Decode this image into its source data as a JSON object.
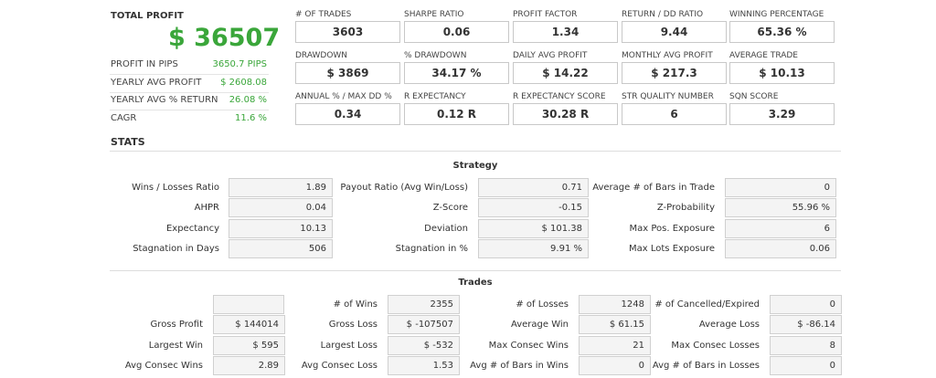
{
  "summary": {
    "title": "TOTAL PROFIT",
    "total": "$ 36507",
    "rows": [
      {
        "label": "PROFIT IN PIPS",
        "value": "3650.7 PIPS"
      },
      {
        "label": "YEARLY AVG PROFIT",
        "value": "$ 2608.08"
      },
      {
        "label": "YEARLY AVG % RETURN",
        "value": "26.08 %"
      },
      {
        "label": "CAGR",
        "value": "11.6 %"
      }
    ]
  },
  "metrics": {
    "rows": [
      [
        {
          "label": "# OF TRADES",
          "value": "3603"
        },
        {
          "label": "SHARPE RATIO",
          "value": "0.06"
        },
        {
          "label": "PROFIT FACTOR",
          "value": "1.34"
        },
        {
          "label": "RETURN / DD RATIO",
          "value": "9.44"
        },
        {
          "label": "WINNING PERCENTAGE",
          "value": "65.36 %"
        }
      ],
      [
        {
          "label": "DRAWDOWN",
          "value": "$ 3869"
        },
        {
          "label": "% DRAWDOWN",
          "value": "34.17 %"
        },
        {
          "label": "DAILY AVG PROFIT",
          "value": "$ 14.22"
        },
        {
          "label": "MONTHLY AVG PROFIT",
          "value": "$ 217.3"
        },
        {
          "label": "AVERAGE TRADE",
          "value": "$ 10.13"
        }
      ],
      [
        {
          "label": "ANNUAL % / MAX DD %",
          "value": "0.34"
        },
        {
          "label": "R EXPECTANCY",
          "value": "0.12 R"
        },
        {
          "label": "R EXPECTANCY SCORE",
          "value": "30.28 R"
        },
        {
          "label": "STR QUALITY NUMBER",
          "value": "6"
        },
        {
          "label": "SQN SCORE",
          "value": "3.29"
        }
      ]
    ]
  },
  "stats": {
    "title": "STATS",
    "strategy": {
      "title": "Strategy",
      "rows": [
        [
          {
            "label": "Wins / Losses Ratio",
            "value": "1.89"
          },
          {
            "label": "Payout Ratio (Avg Win/Loss)",
            "value": "0.71"
          },
          {
            "label": "Average # of Bars in Trade",
            "value": "0"
          }
        ],
        [
          {
            "label": "AHPR",
            "value": "0.04"
          },
          {
            "label": "Z-Score",
            "value": "-0.15"
          },
          {
            "label": "Z-Probability",
            "value": "55.96 %"
          }
        ],
        [
          {
            "label": "Expectancy",
            "value": "10.13"
          },
          {
            "label": "Deviation",
            "value": "$ 101.38"
          },
          {
            "label": "Max Pos. Exposure",
            "value": "6"
          }
        ],
        [
          {
            "label": "Stagnation in Days",
            "value": "506"
          },
          {
            "label": "Stagnation in %",
            "value": "9.91 %"
          },
          {
            "label": "Max Lots Exposure",
            "value": "0.06"
          }
        ]
      ]
    },
    "trades": {
      "title": "Trades",
      "rows": [
        [
          {
            "label": "# of Wins",
            "value": "2355"
          },
          {
            "label": "# of Losses",
            "value": "1248"
          },
          {
            "label": "# of Cancelled/Expired",
            "value": "0"
          }
        ],
        [
          {
            "label": "Gross Profit",
            "value": "$ 144014"
          },
          {
            "label": "Gross Loss",
            "value": "$ -107507"
          },
          {
            "label": "Average Win",
            "value": "$ 61.15"
          },
          {
            "label": "Average Loss",
            "value": "$ -86.14"
          }
        ],
        [
          {
            "label": "Largest Win",
            "value": "$ 595"
          },
          {
            "label": "Largest Loss",
            "value": "$ -532"
          },
          {
            "label": "Max Consec Wins",
            "value": "21"
          },
          {
            "label": "Max Consec Losses",
            "value": "8"
          }
        ],
        [
          {
            "label": "Avg Consec Wins",
            "value": "2.89"
          },
          {
            "label": "Avg Consec Loss",
            "value": "1.53"
          },
          {
            "label": "Avg # of Bars in Wins",
            "value": "0"
          },
          {
            "label": "Avg # of Bars in Losses",
            "value": "0"
          }
        ]
      ]
    }
  }
}
